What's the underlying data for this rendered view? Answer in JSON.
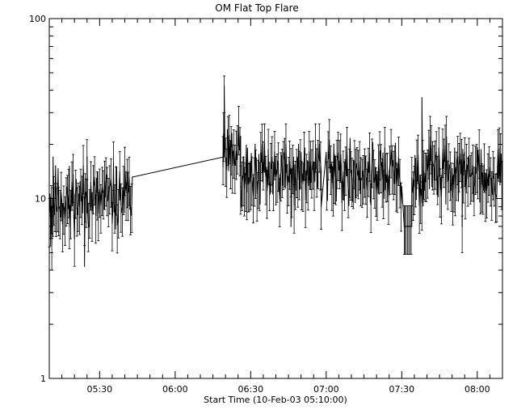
{
  "chart_data": {
    "type": "line",
    "title": "OM Flat Top Flare",
    "xlabel": "Start Time (10-Feb-03 05:10:00)",
    "ylabel": "",
    "y_scale": "log",
    "ylim": [
      1,
      100
    ],
    "xlim": [
      "05:10",
      "08:10"
    ],
    "grid": false,
    "y_tick_labels": [
      "1",
      "10",
      "100"
    ],
    "x_tick_labels": [
      "05:30",
      "06:00",
      "06:30",
      "07:00",
      "07:30",
      "08:00"
    ],
    "series": [
      {
        "name": "",
        "error_bars": true,
        "segments": [
          {
            "x_start": "05:10:00",
            "x_end": "05:43:00",
            "mean": 10,
            "low": 6,
            "high": 17,
            "spread": 0.17,
            "seed": 11
          },
          {
            "x_start": "06:19:00",
            "x_end": "06:26:00",
            "mean": 19,
            "low": 13,
            "high": 25,
            "spread": 0.14,
            "seed": 23
          },
          {
            "x_start": "06:26:00",
            "x_end": "06:58:00",
            "mean": 14,
            "low": 8,
            "high": 20,
            "spread": 0.16,
            "seed": 37
          },
          {
            "x_start": "07:00:00",
            "x_end": "07:30:00",
            "mean": 14,
            "low": 7,
            "high": 22,
            "spread": 0.16,
            "seed": 41
          },
          {
            "x_start": "07:31:00",
            "x_end": "07:34:00",
            "mean": 7,
            "low": 7,
            "high": 7,
            "spread": 0.0,
            "seed": 53
          },
          {
            "x_start": "07:34:00",
            "x_end": "08:10:00",
            "mean": 14,
            "low": 9,
            "high": 22,
            "spread": 0.16,
            "seed": 67
          }
        ],
        "points": [
          {
            "x": "05:10:30",
            "y": 6
          },
          {
            "x": "05:11:30",
            "y": 17
          },
          {
            "x": "05:18:00",
            "y": 7
          },
          {
            "x": "05:25:00",
            "y": 17
          },
          {
            "x": "05:41:00",
            "y": 14
          },
          {
            "x": "06:19:00",
            "y": 15
          },
          {
            "x": "06:22:00",
            "y": 21
          },
          {
            "x": "06:58:00",
            "y": 9
          },
          {
            "x": "07:31:00",
            "y": 7
          },
          {
            "x": "07:55:00",
            "y": 18
          }
        ],
        "outliers": [
          {
            "x": "05:11:00",
            "y": 4
          },
          {
            "x": "05:24:00",
            "y": 3
          },
          {
            "x": "06:19:30",
            "y": 30
          },
          {
            "x": "06:46:00",
            "y": 5
          },
          {
            "x": "07:38:00",
            "y": 26
          },
          {
            "x": "07:54:00",
            "y": 5
          }
        ]
      }
    ]
  }
}
